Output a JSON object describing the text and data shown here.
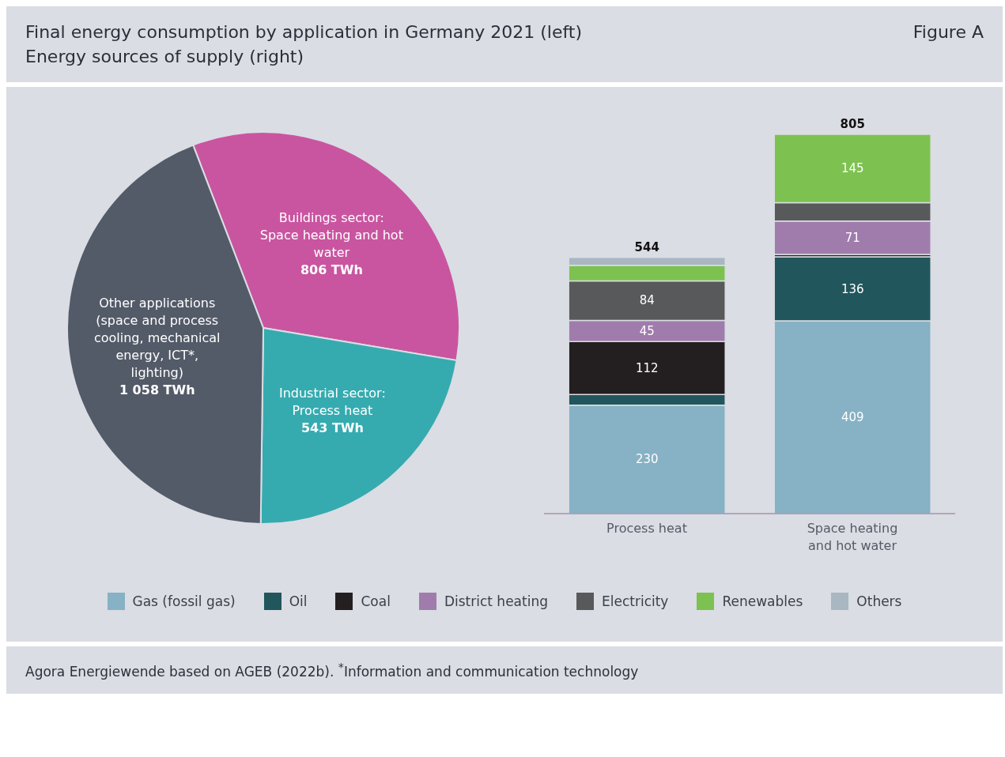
{
  "chart_data": [
    {
      "type": "pie",
      "title": "Final energy consumption by application in Germany 2021 (left)",
      "subtitle": "Energy sources of supply (right)",
      "annotations": [
        "Figure A",
        "Agora Energiewende based on AGEB (2022b). $^{*}$Information and communication technology"
      ],
      "categories": [
        "Buildings sector: Space heating and hot water",
        "Industrial sector: Process heat",
        "Other applications (space and process cooling, mechanical energy, ICT*, lighting)"
      ],
      "values": [
        806,
        543,
        1058
      ],
      "value_labels": [
        "806 TWh",
        "543 TWh",
        "1 058 TWh"
      ],
      "colors": [
        "#c955a0",
        "#35abb0",
        "#535a68"
      ]
    },
    {
      "type": "bar",
      "stacked": true,
      "categories": [
        "Process heat",
        "Space heating and hot water"
      ],
      "legend": "bottom",
      "totals": [
        "544",
        "805"
      ],
      "series": [
        {
          "name": "Gas (fossil gas)",
          "color": "#87b1c5",
          "values": [
            230,
            409
          ],
          "value_labels": [
            "230",
            "409"
          ]
        },
        {
          "name": "Oil",
          "color": "#21565d",
          "values": [
            23,
            136
          ],
          "value_labels": [
            null,
            "136"
          ]
        },
        {
          "name": "Coal",
          "color": "#231f20",
          "values": [
            112,
            5
          ],
          "value_labels": [
            "112",
            null
          ]
        },
        {
          "name": "District heating",
          "color": "#a07cad",
          "values": [
            45,
            71
          ],
          "value_labels": [
            "45",
            "71"
          ]
        },
        {
          "name": "Electricity",
          "color": "#58595b",
          "values": [
            84,
            39
          ],
          "value_labels": [
            "84",
            null
          ]
        },
        {
          "name": "Renewables",
          "color": "#7dc250",
          "values": [
            33,
            145
          ],
          "value_labels": [
            null,
            "145"
          ]
        },
        {
          "name": "Others",
          "color": "#a8b7c2",
          "values": [
            17,
            null
          ]
        }
      ]
    }
  ]
}
